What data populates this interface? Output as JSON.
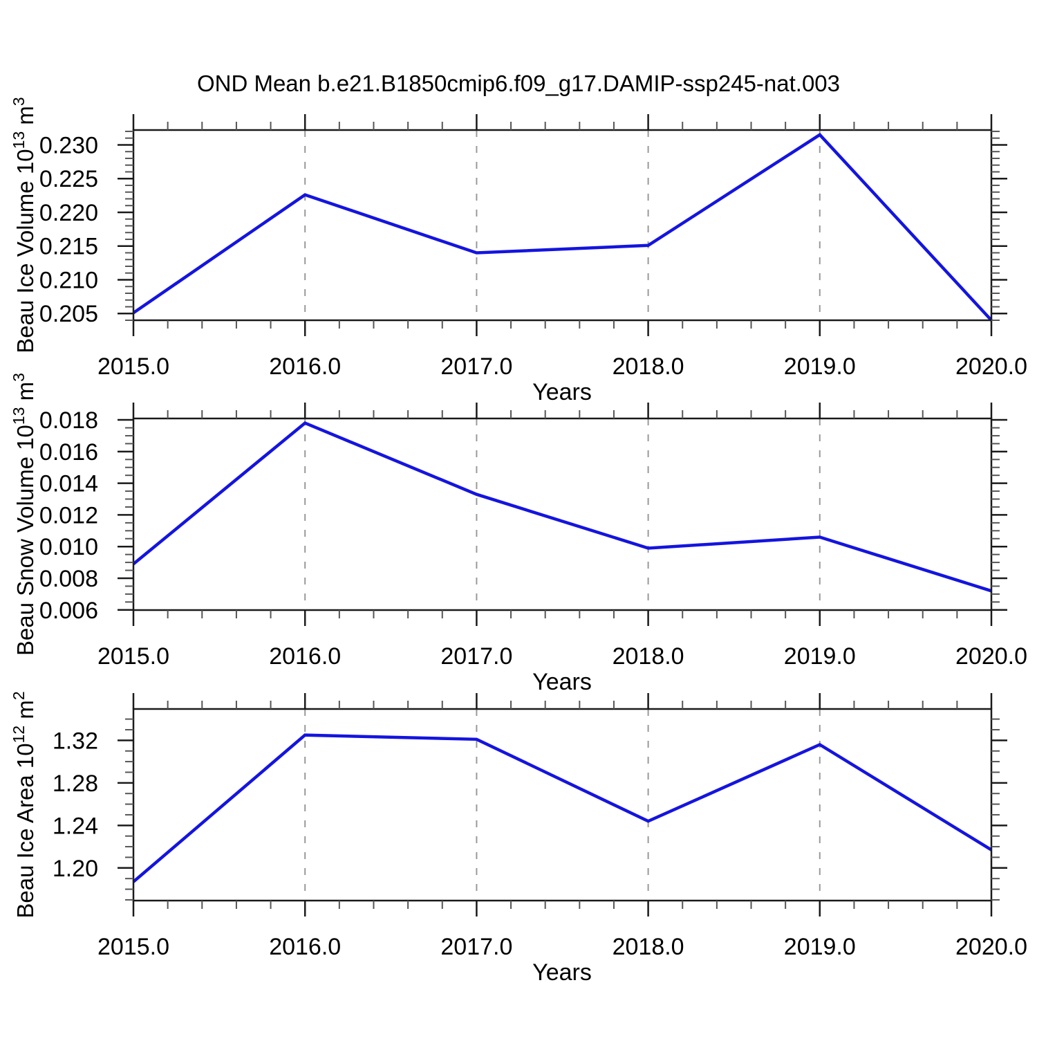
{
  "title": "OND Mean b.e21.B1850cmip6.f09_g17.DAMIP-ssp245-nat.003",
  "line_color": "#1414e0",
  "grid_color": "#999999",
  "frame_color": "#1a1a1a",
  "minor_tick_color": "#555555",
  "chart_data": [
    {
      "type": "line",
      "xlabel": "Years",
      "ylabel_parts": [
        {
          "t": "Beau Ice Volume 10"
        },
        {
          "t": "13",
          "sup": true
        },
        {
          "t": " m"
        },
        {
          "t": "3",
          "sup": true
        }
      ],
      "x": [
        2015,
        2016,
        2017,
        2018,
        2019,
        2020
      ],
      "values": [
        0.2051,
        0.2226,
        0.214,
        0.2151,
        0.2315,
        0.204
      ],
      "xlim": [
        2015,
        2020
      ],
      "ylim": [
        0.204,
        0.2322
      ],
      "xticks": [
        2015,
        2016,
        2017,
        2018,
        2019,
        2020
      ],
      "xtick_labels": [
        "2015.0",
        "2016.0",
        "2017.0",
        "2018.0",
        "2019.0",
        "2020.0"
      ],
      "x_minor_step": 0.2,
      "yticks": [
        0.205,
        0.21,
        0.215,
        0.22,
        0.225,
        0.23
      ],
      "ytick_labels": [
        "0.205",
        "0.210",
        "0.215",
        "0.220",
        "0.225",
        "0.230"
      ],
      "y_minor_step": 0.001,
      "gridline_x": [
        2016,
        2017,
        2018,
        2019
      ],
      "grid": "vertical-dashed",
      "legend": "none"
    },
    {
      "type": "line",
      "xlabel": "Years",
      "ylabel_parts": [
        {
          "t": "Beau Snow Volume 10"
        },
        {
          "t": "13",
          "sup": true
        },
        {
          "t": " m"
        },
        {
          "t": "3",
          "sup": true
        }
      ],
      "x": [
        2015,
        2016,
        2017,
        2018,
        2019,
        2020
      ],
      "values": [
        0.0089,
        0.0178,
        0.0133,
        0.0099,
        0.0106,
        0.0072
      ],
      "xlim": [
        2015,
        2020
      ],
      "ylim": [
        0.00599,
        0.01809
      ],
      "xticks": [
        2015,
        2016,
        2017,
        2018,
        2019,
        2020
      ],
      "xtick_labels": [
        "2015.0",
        "2016.0",
        "2017.0",
        "2018.0",
        "2019.0",
        "2020.0"
      ],
      "x_minor_step": 0.2,
      "yticks": [
        0.006,
        0.008,
        0.01,
        0.012,
        0.014,
        0.016,
        0.018
      ],
      "ytick_labels": [
        "0.006",
        "0.008",
        "0.010",
        "0.012",
        "0.014",
        "0.016",
        "0.018"
      ],
      "y_minor_step": 0.0005,
      "gridline_x": [
        2016,
        2017,
        2018,
        2019
      ],
      "grid": "vertical-dashed",
      "legend": "none"
    },
    {
      "type": "line",
      "xlabel": "Years",
      "ylabel_parts": [
        {
          "t": "Beau Ice Area 10"
        },
        {
          "t": "12",
          "sup": true
        },
        {
          "t": " m"
        },
        {
          "t": "2",
          "sup": true
        }
      ],
      "x": [
        2015,
        2016,
        2017,
        2018,
        2019,
        2020
      ],
      "values": [
        1.187,
        1.325,
        1.321,
        1.244,
        1.316,
        1.217
      ],
      "xlim": [
        2015,
        2020
      ],
      "ylim": [
        1.1693,
        1.3495
      ],
      "xticks": [
        2015,
        2016,
        2017,
        2018,
        2019,
        2020
      ],
      "xtick_labels": [
        "2015.0",
        "2016.0",
        "2017.0",
        "2018.0",
        "2019.0",
        "2020.0"
      ],
      "x_minor_step": 0.2,
      "yticks": [
        1.2,
        1.24,
        1.28,
        1.32
      ],
      "ytick_labels": [
        "1.20",
        "1.24",
        "1.28",
        "1.32"
      ],
      "y_minor_step": 0.01,
      "gridline_x": [
        2016,
        2017,
        2018,
        2019
      ],
      "grid": "vertical-dashed",
      "legend": "none"
    }
  ]
}
